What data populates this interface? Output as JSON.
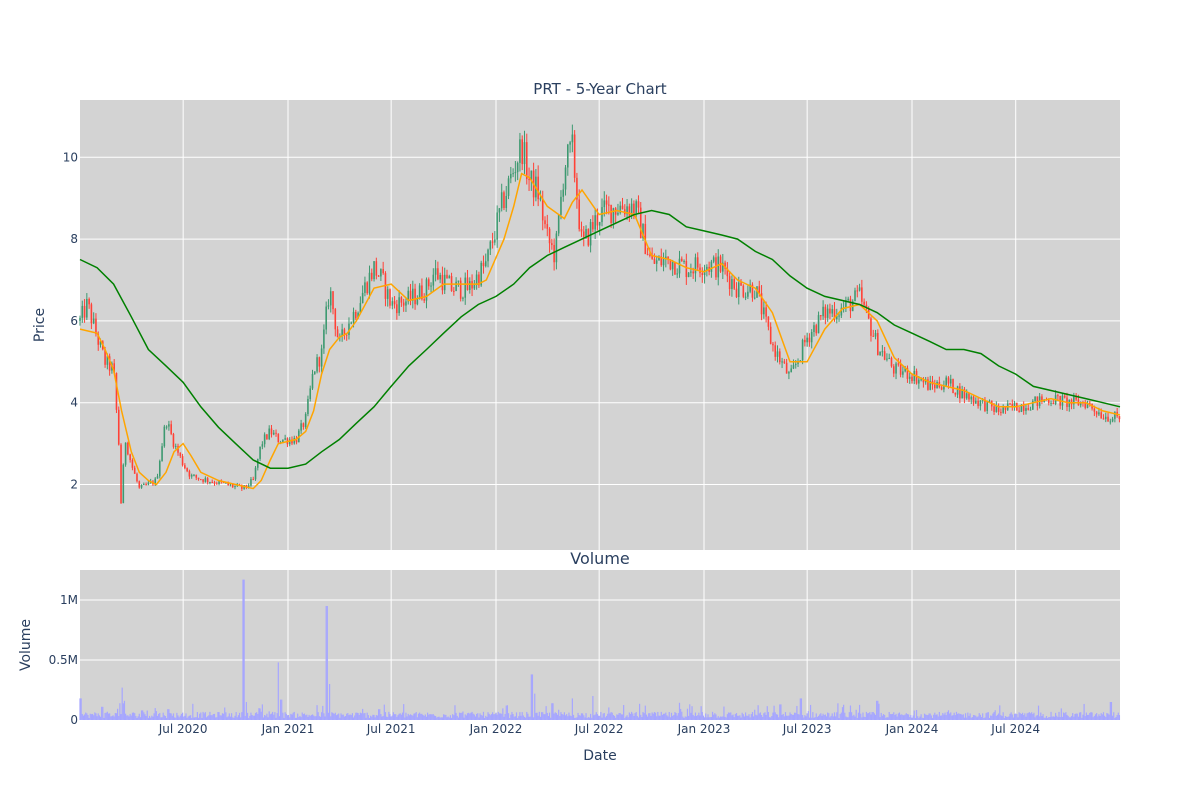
{
  "chart_data": [
    {
      "type": "candlestick",
      "title": "PRT - 5-Year Chart",
      "ylabel": "Price",
      "ylim": [
        0.4,
        11.4
      ],
      "yticks": [
        2,
        4,
        6,
        8,
        10
      ],
      "x_range": [
        "2020-01-02",
        "2024-12-31"
      ],
      "up_color": "#3d9970",
      "down_color": "#ff4136",
      "grid": true,
      "close_approx": [
        [
          "2020-01-02",
          6.0
        ],
        [
          "2020-01-15",
          6.4
        ],
        [
          "2020-02-01",
          5.6
        ],
        [
          "2020-02-15",
          5.0
        ],
        [
          "2020-03-01",
          4.8
        ],
        [
          "2020-03-10",
          3.0
        ],
        [
          "2020-03-15",
          1.2
        ],
        [
          "2020-03-20",
          3.2
        ],
        [
          "2020-04-01",
          2.5
        ],
        [
          "2020-04-15",
          1.9
        ],
        [
          "2020-05-01",
          2.0
        ],
        [
          "2020-05-15",
          2.1
        ],
        [
          "2020-06-01",
          3.6
        ],
        [
          "2020-06-15",
          3.0
        ],
        [
          "2020-07-01",
          2.5
        ],
        [
          "2020-07-15",
          2.2
        ],
        [
          "2020-08-15",
          2.1
        ],
        [
          "2020-09-15",
          2.0
        ],
        [
          "2020-10-15",
          1.9
        ],
        [
          "2020-11-01",
          2.1
        ],
        [
          "2020-11-15",
          3.0
        ],
        [
          "2020-12-01",
          3.3
        ],
        [
          "2020-12-15",
          3.1
        ],
        [
          "2021-01-15",
          3.1
        ],
        [
          "2021-02-01",
          3.6
        ],
        [
          "2021-02-15",
          4.8
        ],
        [
          "2021-03-01",
          5.2
        ],
        [
          "2021-03-15",
          6.8
        ],
        [
          "2021-04-01",
          5.4
        ],
        [
          "2021-04-15",
          5.9
        ],
        [
          "2021-05-01",
          6.3
        ],
        [
          "2021-05-15",
          6.8
        ],
        [
          "2021-06-01",
          7.3
        ],
        [
          "2021-06-15",
          7.0
        ],
        [
          "2021-07-01",
          6.4
        ],
        [
          "2021-08-01",
          6.5
        ],
        [
          "2021-09-01",
          6.8
        ],
        [
          "2021-09-15",
          7.2
        ],
        [
          "2021-10-15",
          6.8
        ],
        [
          "2021-11-15",
          6.8
        ],
        [
          "2021-12-15",
          7.4
        ],
        [
          "2022-01-15",
          9.0
        ],
        [
          "2022-02-01",
          9.7
        ],
        [
          "2022-02-15",
          10.3
        ],
        [
          "2022-03-01",
          9.4
        ],
        [
          "2022-03-15",
          9.2
        ],
        [
          "2022-04-01",
          8.0
        ],
        [
          "2022-04-15",
          7.6
        ],
        [
          "2022-05-01",
          9.8
        ],
        [
          "2022-05-15",
          10.2
        ],
        [
          "2022-06-01",
          7.8
        ],
        [
          "2022-06-15",
          8.2
        ],
        [
          "2022-07-01",
          8.6
        ],
        [
          "2022-08-01",
          8.8
        ],
        [
          "2022-09-01",
          8.8
        ],
        [
          "2022-10-01",
          7.4
        ],
        [
          "2022-11-01",
          7.5
        ],
        [
          "2022-12-01",
          7.3
        ],
        [
          "2023-01-01",
          7.4
        ],
        [
          "2023-02-01",
          7.3
        ],
        [
          "2023-03-01",
          6.8
        ],
        [
          "2023-04-01",
          6.8
        ],
        [
          "2023-05-01",
          5.4
        ],
        [
          "2023-06-01",
          4.6
        ],
        [
          "2023-07-01",
          5.6
        ],
        [
          "2023-08-01",
          6.2
        ],
        [
          "2023-09-01",
          6.3
        ],
        [
          "2023-10-01",
          6.6
        ],
        [
          "2023-11-01",
          5.4
        ],
        [
          "2023-12-01",
          4.8
        ],
        [
          "2024-01-01",
          4.7
        ],
        [
          "2024-02-01",
          4.4
        ],
        [
          "2024-03-01",
          4.5
        ],
        [
          "2024-04-01",
          4.2
        ],
        [
          "2024-05-01",
          4.0
        ],
        [
          "2024-06-01",
          3.8
        ],
        [
          "2024-07-01",
          3.9
        ],
        [
          "2024-08-01",
          4.0
        ],
        [
          "2024-09-01",
          4.1
        ],
        [
          "2024-10-01",
          4.0
        ],
        [
          "2024-11-01",
          4.0
        ],
        [
          "2024-12-01",
          3.7
        ],
        [
          "2024-12-31",
          3.6
        ]
      ],
      "series": [
        {
          "type": "line",
          "color": "#ffa500",
          "points": [
            [
              "2020-01-02",
              5.8
            ],
            [
              "2020-02-01",
              5.7
            ],
            [
              "2020-02-15",
              5.3
            ],
            [
              "2020-03-01",
              4.8
            ],
            [
              "2020-03-15",
              3.8
            ],
            [
              "2020-04-01",
              2.8
            ],
            [
              "2020-04-15",
              2.3
            ],
            [
              "2020-05-01",
              2.1
            ],
            [
              "2020-05-15",
              2.0
            ],
            [
              "2020-06-01",
              2.3
            ],
            [
              "2020-06-15",
              2.8
            ],
            [
              "2020-07-01",
              3.0
            ],
            [
              "2020-07-15",
              2.7
            ],
            [
              "2020-08-01",
              2.3
            ],
            [
              "2020-09-01",
              2.1
            ],
            [
              "2020-10-01",
              2.0
            ],
            [
              "2020-11-01",
              1.9
            ],
            [
              "2020-11-15",
              2.1
            ],
            [
              "2020-12-01",
              2.6
            ],
            [
              "2020-12-15",
              3.0
            ],
            [
              "2021-01-15",
              3.1
            ],
            [
              "2021-02-01",
              3.3
            ],
            [
              "2021-02-15",
              3.8
            ],
            [
              "2021-03-01",
              4.7
            ],
            [
              "2021-03-15",
              5.3
            ],
            [
              "2021-04-01",
              5.6
            ],
            [
              "2021-04-15",
              5.7
            ],
            [
              "2021-05-01",
              6.0
            ],
            [
              "2021-06-01",
              6.8
            ],
            [
              "2021-07-01",
              6.9
            ],
            [
              "2021-08-01",
              6.5
            ],
            [
              "2021-09-01",
              6.6
            ],
            [
              "2021-10-01",
              6.9
            ],
            [
              "2021-11-01",
              6.9
            ],
            [
              "2021-12-01",
              6.9
            ],
            [
              "2021-12-15",
              7.0
            ],
            [
              "2022-01-15",
              8.0
            ],
            [
              "2022-02-01",
              8.8
            ],
            [
              "2022-02-15",
              9.6
            ],
            [
              "2022-03-01",
              9.5
            ],
            [
              "2022-04-01",
              8.8
            ],
            [
              "2022-05-01",
              8.5
            ],
            [
              "2022-05-15",
              8.9
            ],
            [
              "2022-06-01",
              9.2
            ],
            [
              "2022-07-01",
              8.6
            ],
            [
              "2022-08-01",
              8.7
            ],
            [
              "2022-09-01",
              8.6
            ],
            [
              "2022-10-01",
              7.6
            ],
            [
              "2022-11-01",
              7.5
            ],
            [
              "2022-12-01",
              7.3
            ],
            [
              "2023-01-01",
              7.2
            ],
            [
              "2023-02-01",
              7.4
            ],
            [
              "2023-03-01",
              7.0
            ],
            [
              "2023-04-01",
              6.8
            ],
            [
              "2023-05-01",
              6.2
            ],
            [
              "2023-06-01",
              5.0
            ],
            [
              "2023-07-01",
              5.0
            ],
            [
              "2023-08-01",
              5.8
            ],
            [
              "2023-09-01",
              6.3
            ],
            [
              "2023-10-01",
              6.4
            ],
            [
              "2023-11-01",
              6.0
            ],
            [
              "2023-12-01",
              5.1
            ],
            [
              "2024-01-01",
              4.7
            ],
            [
              "2024-02-01",
              4.5
            ],
            [
              "2024-03-01",
              4.4
            ],
            [
              "2024-04-01",
              4.3
            ],
            [
              "2024-05-01",
              4.1
            ],
            [
              "2024-06-01",
              3.9
            ],
            [
              "2024-07-01",
              3.9
            ],
            [
              "2024-08-01",
              4.0
            ],
            [
              "2024-09-01",
              4.1
            ],
            [
              "2024-10-01",
              4.0
            ],
            [
              "2024-11-01",
              4.0
            ],
            [
              "2024-12-01",
              3.8
            ],
            [
              "2024-12-31",
              3.7
            ]
          ]
        },
        {
          "type": "line",
          "color": "#008000",
          "points": [
            [
              "2020-01-02",
              7.5
            ],
            [
              "2020-02-01",
              7.3
            ],
            [
              "2020-03-01",
              6.9
            ],
            [
              "2020-04-01",
              6.1
            ],
            [
              "2020-05-01",
              5.3
            ],
            [
              "2020-06-01",
              4.9
            ],
            [
              "2020-07-01",
              4.5
            ],
            [
              "2020-08-01",
              3.9
            ],
            [
              "2020-09-01",
              3.4
            ],
            [
              "2020-10-01",
              3.0
            ],
            [
              "2020-11-01",
              2.6
            ],
            [
              "2020-12-01",
              2.4
            ],
            [
              "2021-01-01",
              2.4
            ],
            [
              "2021-02-01",
              2.5
            ],
            [
              "2021-03-01",
              2.8
            ],
            [
              "2021-04-01",
              3.1
            ],
            [
              "2021-05-01",
              3.5
            ],
            [
              "2021-06-01",
              3.9
            ],
            [
              "2021-07-01",
              4.4
            ],
            [
              "2021-08-01",
              4.9
            ],
            [
              "2021-09-01",
              5.3
            ],
            [
              "2021-10-01",
              5.7
            ],
            [
              "2021-11-01",
              6.1
            ],
            [
              "2021-12-01",
              6.4
            ],
            [
              "2022-01-01",
              6.6
            ],
            [
              "2022-02-01",
              6.9
            ],
            [
              "2022-03-01",
              7.3
            ],
            [
              "2022-04-01",
              7.6
            ],
            [
              "2022-05-01",
              7.8
            ],
            [
              "2022-06-01",
              8.0
            ],
            [
              "2022-07-01",
              8.2
            ],
            [
              "2022-08-01",
              8.4
            ],
            [
              "2022-09-01",
              8.6
            ],
            [
              "2022-10-01",
              8.7
            ],
            [
              "2022-11-01",
              8.6
            ],
            [
              "2022-12-01",
              8.3
            ],
            [
              "2023-01-01",
              8.2
            ],
            [
              "2023-02-01",
              8.1
            ],
            [
              "2023-03-01",
              8.0
            ],
            [
              "2023-04-01",
              7.7
            ],
            [
              "2023-05-01",
              7.5
            ],
            [
              "2023-06-01",
              7.1
            ],
            [
              "2023-07-01",
              6.8
            ],
            [
              "2023-08-01",
              6.6
            ],
            [
              "2023-09-01",
              6.5
            ],
            [
              "2023-10-01",
              6.4
            ],
            [
              "2023-11-01",
              6.2
            ],
            [
              "2023-12-01",
              5.9
            ],
            [
              "2024-01-01",
              5.7
            ],
            [
              "2024-02-01",
              5.5
            ],
            [
              "2024-03-01",
              5.3
            ],
            [
              "2024-04-01",
              5.3
            ],
            [
              "2024-05-01",
              5.2
            ],
            [
              "2024-06-01",
              4.9
            ],
            [
              "2024-07-01",
              4.7
            ],
            [
              "2024-08-01",
              4.4
            ],
            [
              "2024-09-01",
              4.3
            ],
            [
              "2024-10-01",
              4.2
            ],
            [
              "2024-11-01",
              4.1
            ],
            [
              "2024-12-01",
              4.0
            ],
            [
              "2024-12-31",
              3.9
            ]
          ]
        }
      ]
    },
    {
      "type": "bar",
      "title": "Volume",
      "xlabel": "Date",
      "ylabel": "Volume",
      "ylim": [
        0,
        1250000
      ],
      "yticks": [
        {
          "value": 0,
          "label": "0"
        },
        {
          "value": 500000,
          "label": "0.5M"
        },
        {
          "value": 1000000,
          "label": "1M"
        }
      ],
      "xticks": [
        {
          "date": "2020-07-01",
          "label": "Jul 2020"
        },
        {
          "date": "2021-01-01",
          "label": "Jan 2021"
        },
        {
          "date": "2021-07-01",
          "label": "Jul 2021"
        },
        {
          "date": "2022-01-01",
          "label": "Jan 2022"
        },
        {
          "date": "2022-07-01",
          "label": "Jul 2022"
        },
        {
          "date": "2023-01-01",
          "label": "Jan 2023"
        },
        {
          "date": "2023-07-01",
          "label": "Jul 2023"
        },
        {
          "date": "2024-01-01",
          "label": "Jan 2024"
        },
        {
          "date": "2024-07-01",
          "label": "Jul 2024"
        }
      ],
      "bar_color": "#a6a6ff",
      "baseline_volume": 40000,
      "spikes": [
        [
          "2020-01-03",
          180000
        ],
        [
          "2020-02-10",
          110000
        ],
        [
          "2020-03-12",
          140000
        ],
        [
          "2020-03-16",
          270000
        ],
        [
          "2020-03-20",
          160000
        ],
        [
          "2020-04-20",
          80000
        ],
        [
          "2020-06-05",
          90000
        ],
        [
          "2020-10-15",
          1170000
        ],
        [
          "2020-10-20",
          150000
        ],
        [
          "2020-12-15",
          480000
        ],
        [
          "2020-12-20",
          170000
        ],
        [
          "2021-03-10",
          950000
        ],
        [
          "2021-03-15",
          300000
        ],
        [
          "2021-06-10",
          90000
        ],
        [
          "2022-01-20",
          120000
        ],
        [
          "2022-03-05",
          380000
        ],
        [
          "2022-03-10",
          220000
        ],
        [
          "2022-04-10",
          140000
        ],
        [
          "2022-05-15",
          180000
        ],
        [
          "2022-06-20",
          200000
        ],
        [
          "2022-09-20",
          120000
        ],
        [
          "2023-05-15",
          130000
        ],
        [
          "2023-06-20",
          180000
        ],
        [
          "2023-11-01",
          160000
        ],
        [
          "2024-08-10",
          120000
        ],
        [
          "2024-12-15",
          150000
        ]
      ]
    }
  ]
}
